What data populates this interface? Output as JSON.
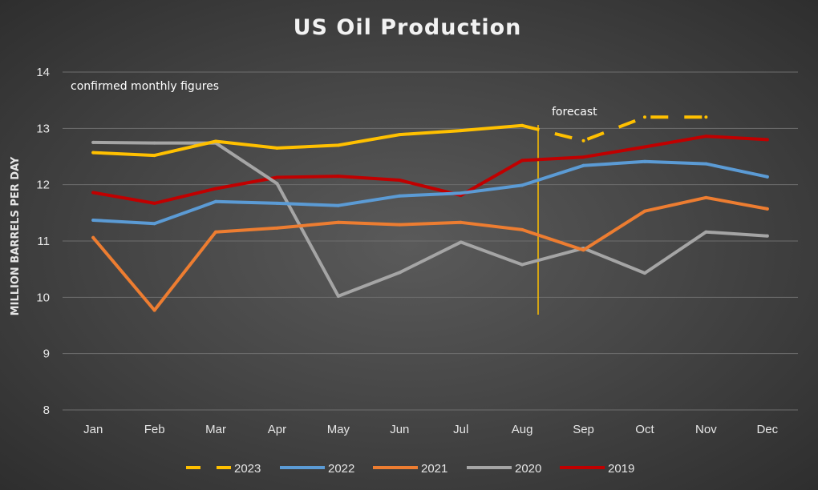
{
  "chart_data": {
    "type": "line",
    "title": "US Oil Production",
    "xlabel": "",
    "ylabel": "MILLION BARRELS PER DAY",
    "ylim": [
      8,
      14
    ],
    "yticks": [
      "8",
      "9",
      "10",
      "11",
      "12",
      "13",
      "14"
    ],
    "categories": [
      "Jan",
      "Feb",
      "Mar",
      "Apr",
      "May",
      "Jun",
      "Jul",
      "Aug",
      "Sep",
      "Oct",
      "Nov",
      "Dec"
    ],
    "grid": true,
    "legend_position": "bottom",
    "annotations": {
      "confirmed": "confirmed monthly figures",
      "forecast": "forecast",
      "forecast_divider_after": "Aug"
    },
    "series": [
      {
        "name": "2023",
        "color": "#FFC000",
        "dashed_from_index": 7,
        "values": [
          12.57,
          12.52,
          12.77,
          12.65,
          12.7,
          12.89,
          12.96,
          13.05,
          12.78,
          13.2,
          13.2,
          null
        ]
      },
      {
        "name": "2022",
        "color": "#5B9BD5",
        "values": [
          11.37,
          11.31,
          11.7,
          11.67,
          11.63,
          11.8,
          11.85,
          11.99,
          12.34,
          12.41,
          12.37,
          12.14
        ]
      },
      {
        "name": "2021",
        "color": "#ED7D31",
        "values": [
          11.06,
          9.77,
          11.16,
          11.23,
          11.33,
          11.29,
          11.33,
          11.2,
          10.84,
          11.53,
          11.77,
          11.57
        ]
      },
      {
        "name": "2020",
        "color": "#A5A5A5",
        "values": [
          12.75,
          12.74,
          12.74,
          12.02,
          10.02,
          10.44,
          10.98,
          10.58,
          10.87,
          10.43,
          11.16,
          11.09
        ]
      },
      {
        "name": "2019",
        "color": "#C00000",
        "values": [
          11.86,
          11.67,
          11.93,
          12.13,
          12.15,
          12.08,
          11.81,
          12.43,
          12.49,
          12.67,
          12.86,
          12.8
        ]
      }
    ]
  }
}
